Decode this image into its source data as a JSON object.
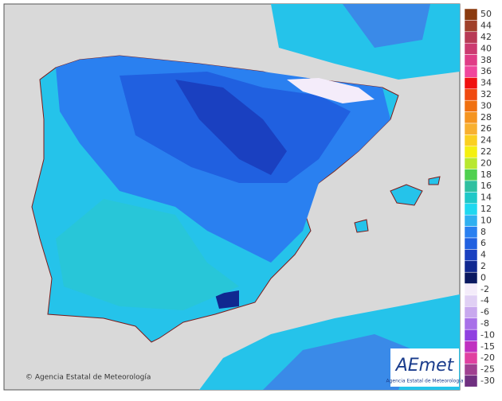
{
  "map": {
    "credit": "© Agencia Estatal de Meteorología",
    "logo": {
      "name": "AEmet",
      "subtitle": "Agencia Estatal de Meteorología"
    },
    "legend": [
      {
        "label": "50",
        "color": "#8b3a0f"
      },
      {
        "label": "44",
        "color": "#a0402a"
      },
      {
        "label": "42",
        "color": "#b83a55"
      },
      {
        "label": "40",
        "color": "#cc3a70"
      },
      {
        "label": "38",
        "color": "#e03c86"
      },
      {
        "label": "36",
        "color": "#f0469c"
      },
      {
        "label": "34",
        "color": "#f01010"
      },
      {
        "label": "32",
        "color": "#f04a10"
      },
      {
        "label": "30",
        "color": "#f07010"
      },
      {
        "label": "28",
        "color": "#f59420"
      },
      {
        "label": "26",
        "color": "#f8b030"
      },
      {
        "label": "24",
        "color": "#fbd020"
      },
      {
        "label": "22",
        "color": "#f4f010"
      },
      {
        "label": "20",
        "color": "#b8e830"
      },
      {
        "label": "18",
        "color": "#50d050"
      },
      {
        "label": "16",
        "color": "#30c0a0"
      },
      {
        "label": "14",
        "color": "#20c8c8"
      },
      {
        "label": "12",
        "color": "#20d8f0"
      },
      {
        "label": "10",
        "color": "#30b0f0"
      },
      {
        "label": "8",
        "color": "#2a80f0"
      },
      {
        "label": "6",
        "color": "#2060e0"
      },
      {
        "label": "4",
        "color": "#1a40c0"
      },
      {
        "label": "2",
        "color": "#102890"
      },
      {
        "label": "0",
        "color": "#0a1860"
      },
      {
        "label": "-2",
        "color": "#f4ecfa"
      },
      {
        "label": "-4",
        "color": "#e0d0f4"
      },
      {
        "label": "-6",
        "color": "#c8a8ee"
      },
      {
        "label": "-8",
        "color": "#a870e8"
      },
      {
        "label": "-10",
        "color": "#9040e0"
      },
      {
        "label": "-15",
        "color": "#c030c0"
      },
      {
        "label": "-20",
        "color": "#e040a0"
      },
      {
        "label": "-25",
        "color": "#a04090"
      },
      {
        "label": "-30",
        "color": "#703080"
      }
    ]
  }
}
